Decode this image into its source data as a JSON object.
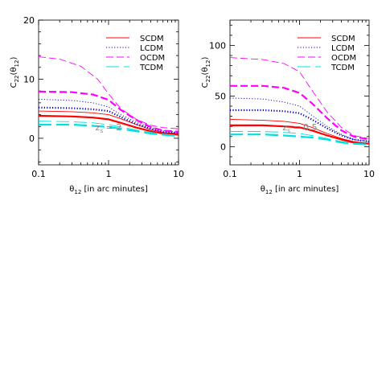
{
  "chart_data": [
    {
      "type": "line",
      "xscale": "log",
      "xlim": [
        0.1,
        10
      ],
      "ylim": [
        -4.5,
        20
      ],
      "xticks": [
        0.1,
        1,
        10
      ],
      "xtick_labels": [
        "0.1",
        "1",
        "10"
      ],
      "yticks": [
        0,
        10,
        20
      ],
      "ytick_labels": [
        "0",
        "10",
        "20"
      ],
      "xlabel": "θ12 [in arc minutes]",
      "ylabel": "C22(θ12)",
      "annotation": "zs = 2",
      "legend_position": "top-right",
      "series": [
        {
          "name": "SCDM",
          "legend": true,
          "style": "solid",
          "color": "#ff0000",
          "width": "thin",
          "x": [
            0.1,
            0.3,
            0.6,
            1,
            1.5,
            2.5,
            4,
            6,
            10
          ],
          "y": [
            4.6,
            4.5,
            4.3,
            4.0,
            3.3,
            2.3,
            1.5,
            1.0,
            0.8
          ]
        },
        {
          "name": "SCDM",
          "legend": false,
          "style": "solid",
          "color": "#ff0000",
          "width": "thick",
          "x": [
            0.1,
            0.3,
            0.6,
            1,
            1.5,
            2.5,
            4,
            6,
            10
          ],
          "y": [
            3.8,
            3.7,
            3.5,
            3.2,
            2.6,
            1.8,
            1.2,
            0.8,
            0.6
          ]
        },
        {
          "name": "LCDM",
          "legend": true,
          "style": "dotted",
          "color": "#0000cc",
          "width": "thin",
          "x": [
            0.1,
            0.3,
            0.6,
            1,
            1.5,
            2.5,
            4,
            6,
            10
          ],
          "y": [
            6.6,
            6.4,
            6.0,
            5.3,
            4.0,
            2.7,
            1.8,
            1.3,
            1.0
          ]
        },
        {
          "name": "LCDM",
          "legend": false,
          "style": "dotted",
          "color": "#0000cc",
          "width": "thick",
          "x": [
            0.1,
            0.3,
            0.6,
            1,
            1.5,
            2.5,
            4,
            6,
            10
          ],
          "y": [
            5.2,
            5.1,
            4.9,
            4.6,
            3.6,
            2.4,
            1.6,
            1.1,
            0.9
          ]
        },
        {
          "name": "OCDM",
          "legend": true,
          "style": "dashed",
          "color": "#ff00ff",
          "width": "thin",
          "x": [
            0.1,
            0.2,
            0.4,
            0.7,
            1,
            1.5,
            2.5,
            4,
            6,
            10
          ],
          "y": [
            13.8,
            13.4,
            12.2,
            10.0,
            7.5,
            5.0,
            3.2,
            2.2,
            1.8,
            1.6
          ]
        },
        {
          "name": "OCDM",
          "legend": false,
          "style": "dashed",
          "color": "#ff00ff",
          "width": "thick",
          "x": [
            0.1,
            0.3,
            0.6,
            1,
            1.5,
            2.5,
            4,
            6,
            10
          ],
          "y": [
            7.9,
            7.8,
            7.4,
            6.5,
            4.8,
            3.1,
            1.9,
            1.3,
            1.1
          ]
        },
        {
          "name": "TCDM",
          "legend": true,
          "style": "long-dash",
          "color": "#00e0e0",
          "width": "thin",
          "x": [
            0.1,
            0.3,
            0.6,
            1,
            1.5,
            2.5,
            4,
            6,
            10
          ],
          "y": [
            2.9,
            2.8,
            2.6,
            2.3,
            1.9,
            1.4,
            1.0,
            0.7,
            0.5
          ]
        },
        {
          "name": "TCDM",
          "legend": false,
          "style": "long-dash",
          "color": "#00e0e0",
          "width": "thick",
          "x": [
            0.1,
            0.3,
            0.6,
            1,
            1.5,
            2.5,
            4,
            6,
            10
          ],
          "y": [
            2.3,
            2.3,
            2.1,
            1.9,
            1.6,
            1.2,
            0.8,
            0.6,
            0.4
          ]
        }
      ]
    },
    {
      "type": "line",
      "xscale": "log",
      "xlim": [
        0.1,
        10
      ],
      "ylim": [
        -18,
        125
      ],
      "xticks": [
        0.1,
        1,
        10
      ],
      "xtick_labels": [
        "0.1",
        "1",
        "10"
      ],
      "yticks": [
        0,
        50,
        100
      ],
      "ytick_labels": [
        "0",
        "50",
        "100"
      ],
      "xlabel": "θ12 [in arc minutes]",
      "ylabel": "C22(θ12)",
      "annotation": "zs = 0.5",
      "legend_position": "top-right",
      "series": [
        {
          "name": "SCDM",
          "legend": true,
          "style": "solid",
          "color": "#ff0000",
          "width": "thin",
          "x": [
            0.1,
            0.3,
            0.6,
            1,
            1.5,
            2.5,
            4,
            6,
            10
          ],
          "y": [
            27,
            26,
            25,
            23,
            19,
            13,
            8,
            5,
            3
          ]
        },
        {
          "name": "SCDM",
          "legend": false,
          "style": "solid",
          "color": "#ff0000",
          "width": "thick",
          "x": [
            0.1,
            0.3,
            0.6,
            1,
            1.5,
            2.5,
            4,
            6,
            10
          ],
          "y": [
            21,
            21,
            20,
            19,
            16,
            11,
            7,
            4,
            3
          ]
        },
        {
          "name": "LCDM",
          "legend": true,
          "style": "dotted",
          "color": "#0000cc",
          "width": "thin",
          "x": [
            0.1,
            0.3,
            0.6,
            1,
            1.5,
            2.5,
            4,
            6,
            10
          ],
          "y": [
            48,
            47,
            44,
            40,
            31,
            20,
            12,
            7,
            5
          ]
        },
        {
          "name": "LCDM",
          "legend": false,
          "style": "dotted",
          "color": "#0000cc",
          "width": "thick",
          "x": [
            0.1,
            0.3,
            0.6,
            1,
            1.5,
            2.5,
            4,
            6,
            10
          ],
          "y": [
            36,
            36,
            35,
            33,
            27,
            18,
            11,
            7,
            5
          ]
        },
        {
          "name": "OCDM",
          "legend": true,
          "style": "dashed",
          "color": "#ff00ff",
          "width": "thin",
          "x": [
            0.1,
            0.3,
            0.6,
            1,
            1.5,
            2.5,
            4,
            6,
            10
          ],
          "y": [
            88,
            86,
            82,
            74,
            56,
            34,
            19,
            11,
            8
          ]
        },
        {
          "name": "OCDM",
          "legend": false,
          "style": "dashed",
          "color": "#ff00ff",
          "width": "thick",
          "x": [
            0.1,
            0.3,
            0.6,
            1,
            1.5,
            2.5,
            4,
            6,
            10
          ],
          "y": [
            60,
            60,
            58,
            53,
            43,
            28,
            16,
            10,
            7
          ]
        },
        {
          "name": "TCDM",
          "legend": true,
          "style": "long-dash",
          "color": "#00e0e0",
          "width": "thin",
          "x": [
            0.1,
            0.3,
            0.6,
            1,
            1.5,
            2.5,
            4,
            6,
            10
          ],
          "y": [
            15,
            15,
            14,
            13,
            11,
            8,
            5,
            3,
            2
          ]
        },
        {
          "name": "TCDM",
          "legend": false,
          "style": "long-dash",
          "color": "#00e0e0",
          "width": "thick",
          "x": [
            0.1,
            0.3,
            0.6,
            1,
            1.5,
            2.5,
            4,
            6,
            10
          ],
          "y": [
            12,
            12,
            11,
            10,
            9,
            7,
            4,
            3,
            2
          ]
        }
      ]
    }
  ]
}
